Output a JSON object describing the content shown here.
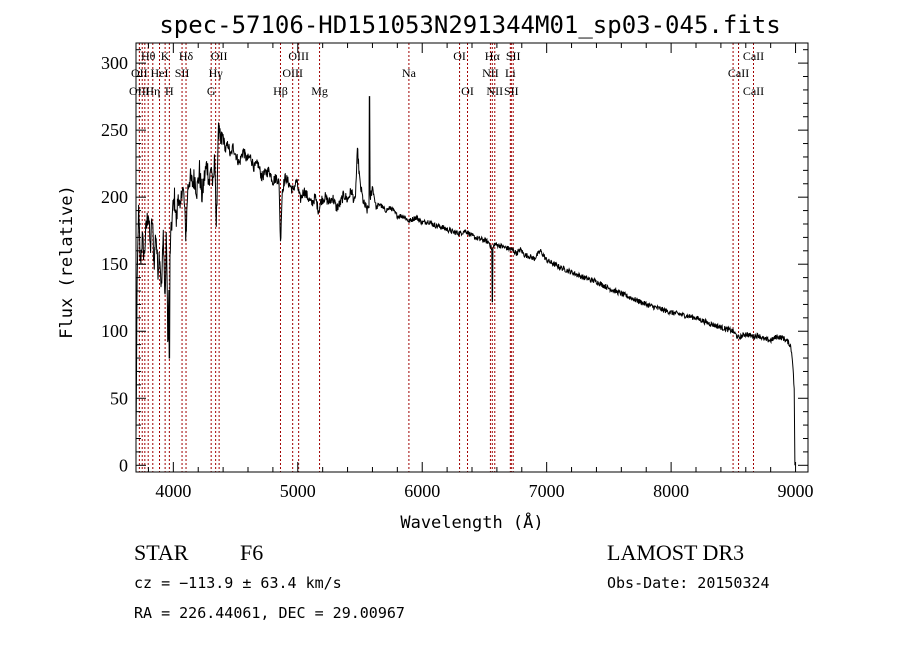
{
  "chart_data": {
    "type": "line",
    "title": "spec-57106-HD151053N291344M01_sp03-045.fits",
    "xlabel": "Wavelength (Å)",
    "ylabel": "Flux (relative)",
    "xlim": [
      3700,
      9100
    ],
    "ylim": [
      -5,
      315
    ],
    "xticks": [
      4000,
      5000,
      6000,
      7000,
      8000,
      9000
    ],
    "yticks": [
      0,
      50,
      100,
      150,
      200,
      250,
      300
    ],
    "series": [
      {
        "name": "flux",
        "x": [
          3700,
          3710,
          3720,
          3735,
          3750,
          3765,
          3780,
          3800,
          3815,
          3830,
          3845,
          3860,
          3875,
          3890,
          3905,
          3920,
          3933,
          3945,
          3955,
          3968,
          3980,
          3995,
          4010,
          4025,
          4040,
          4055,
          4070,
          4085,
          4101,
          4115,
          4130,
          4150,
          4170,
          4190,
          4210,
          4230,
          4250,
          4270,
          4290,
          4305,
          4320,
          4335,
          4345,
          4360,
          4380,
          4400,
          4420,
          4440,
          4460,
          4480,
          4500,
          4530,
          4560,
          4590,
          4620,
          4650,
          4680,
          4710,
          4740,
          4770,
          4800,
          4830,
          4850,
          4861,
          4875,
          4900,
          4930,
          4960,
          4990,
          5020,
          5050,
          5080,
          5110,
          5140,
          5167,
          5190,
          5220,
          5250,
          5280,
          5310,
          5340,
          5370,
          5400,
          5430,
          5460,
          5480,
          5500,
          5530,
          5560,
          5580,
          5600,
          5630,
          5660,
          5700,
          5750,
          5800,
          5850,
          5893,
          5950,
          6000,
          6050,
          6100,
          6150,
          6200,
          6250,
          6300,
          6350,
          6400,
          6450,
          6500,
          6540,
          6563,
          6580,
          6620,
          6680,
          6720,
          6760,
          6790,
          6820,
          6860,
          6900,
          6950,
          7000,
          7100,
          7200,
          7300,
          7400,
          7500,
          7600,
          7700,
          7800,
          7900,
          8000,
          8100,
          8200,
          8300,
          8400,
          8498,
          8542,
          8600,
          8662,
          8700,
          8750,
          8800,
          8850,
          8900,
          8940,
          8960,
          8975,
          8990
        ],
        "y": [
          20,
          140,
          190,
          150,
          170,
          155,
          175,
          190,
          160,
          185,
          150,
          175,
          145,
          160,
          130,
          175,
          120,
          175,
          90,
          145,
          170,
          190,
          200,
          180,
          205,
          185,
          210,
          200,
          170,
          205,
          215,
          210,
          215,
          205,
          220,
          200,
          215,
          225,
          210,
          225,
          205,
          235,
          170,
          250,
          240,
          245,
          235,
          240,
          230,
          238,
          232,
          225,
          235,
          228,
          230,
          222,
          225,
          215,
          218,
          220,
          212,
          215,
          210,
          165,
          205,
          215,
          210,
          205,
          212,
          198,
          205,
          200,
          195,
          200,
          190,
          198,
          200,
          196,
          200,
          192,
          195,
          202,
          198,
          205,
          195,
          235,
          210,
          195,
          190,
          198,
          208,
          192,
          195,
          190,
          192,
          186,
          186,
          182,
          185,
          181,
          182,
          179,
          178,
          176,
          174,
          173,
          175,
          171,
          169,
          168,
          166,
          160,
          165,
          164,
          162,
          161,
          158,
          161,
          157,
          156,
          154,
          160,
          153,
          148,
          144,
          140,
          137,
          132,
          128,
          124,
          120,
          117,
          114,
          112,
          110,
          106,
          103,
          100,
          95,
          98,
          96,
          97,
          94,
          93,
          96,
          95,
          92,
          89,
          80,
          55
        ],
        "features": [
          {
            "x": 5577,
            "y": 275
          },
          {
            "x": 6563,
            "y": 122
          },
          {
            "x": 3968,
            "y": 80
          }
        ]
      }
    ],
    "spectral_lines": [
      {
        "name": "Hθ",
        "wave": 3798,
        "row": 0
      },
      {
        "name": "K",
        "wave": 3934,
        "row": 0
      },
      {
        "name": "Hδ",
        "wave": 4102,
        "row": 0
      },
      {
        "name": "OII",
        "wave": 4368,
        "row": 0
      },
      {
        "name": "OIII",
        "wave": 5007,
        "row": 0
      },
      {
        "name": "OI",
        "wave": 6300,
        "row": 0
      },
      {
        "name": "Hα",
        "wave": 6563,
        "row": 0
      },
      {
        "name": "SII",
        "wave": 6731,
        "row": 0
      },
      {
        "name": "CaII",
        "wave": 8662,
        "row": 0
      },
      {
        "name": "OII",
        "wave": 3727,
        "row": 1
      },
      {
        "name": "HeI",
        "wave": 3889,
        "row": 1
      },
      {
        "name": "SII",
        "wave": 4070,
        "row": 1
      },
      {
        "name": "Hγ",
        "wave": 4340,
        "row": 1
      },
      {
        "name": "OIII",
        "wave": 4959,
        "row": 1
      },
      {
        "name": "Na",
        "wave": 5893,
        "row": 1
      },
      {
        "name": "NII",
        "wave": 6548,
        "row": 1
      },
      {
        "name": "Li",
        "wave": 6708,
        "row": 1
      },
      {
        "name": "CaII",
        "wave": 8542,
        "row": 1
      },
      {
        "name": "OIII",
        "wave": 3727,
        "row": 2
      },
      {
        "name": "Hη",
        "wave": 3835,
        "row": 2
      },
      {
        "name": "H",
        "wave": 3968,
        "row": 2
      },
      {
        "name": "G",
        "wave": 4304,
        "row": 2
      },
      {
        "name": "Hβ",
        "wave": 4861,
        "row": 2
      },
      {
        "name": "Mg",
        "wave": 5175,
        "row": 2
      },
      {
        "name": "OI",
        "wave": 6364,
        "row": 2
      },
      {
        "name": "NII",
        "wave": 6583,
        "row": 2
      },
      {
        "name": "SII",
        "wave": 6716,
        "row": 2
      },
      {
        "name": "CaII",
        "wave": 8662,
        "row": 2
      }
    ],
    "line_marker_waves": [
      3727,
      3750,
      3771,
      3798,
      3835,
      3889,
      3934,
      3968,
      4070,
      4102,
      4304,
      4340,
      4368,
      4861,
      4959,
      5007,
      5175,
      5893,
      6300,
      6364,
      6548,
      6563,
      6583,
      6708,
      6716,
      6731,
      8498,
      8542,
      8662
    ],
    "line_marker_color": "#a00000"
  },
  "info": {
    "object_class": "STAR",
    "subclass": "F6",
    "survey": "LAMOST DR3",
    "cz": "cz = −113.9 ± 63.4 km/s",
    "obs_date": "Obs-Date: 20150324",
    "coords": "RA = 226.44061, DEC =  29.00967"
  }
}
